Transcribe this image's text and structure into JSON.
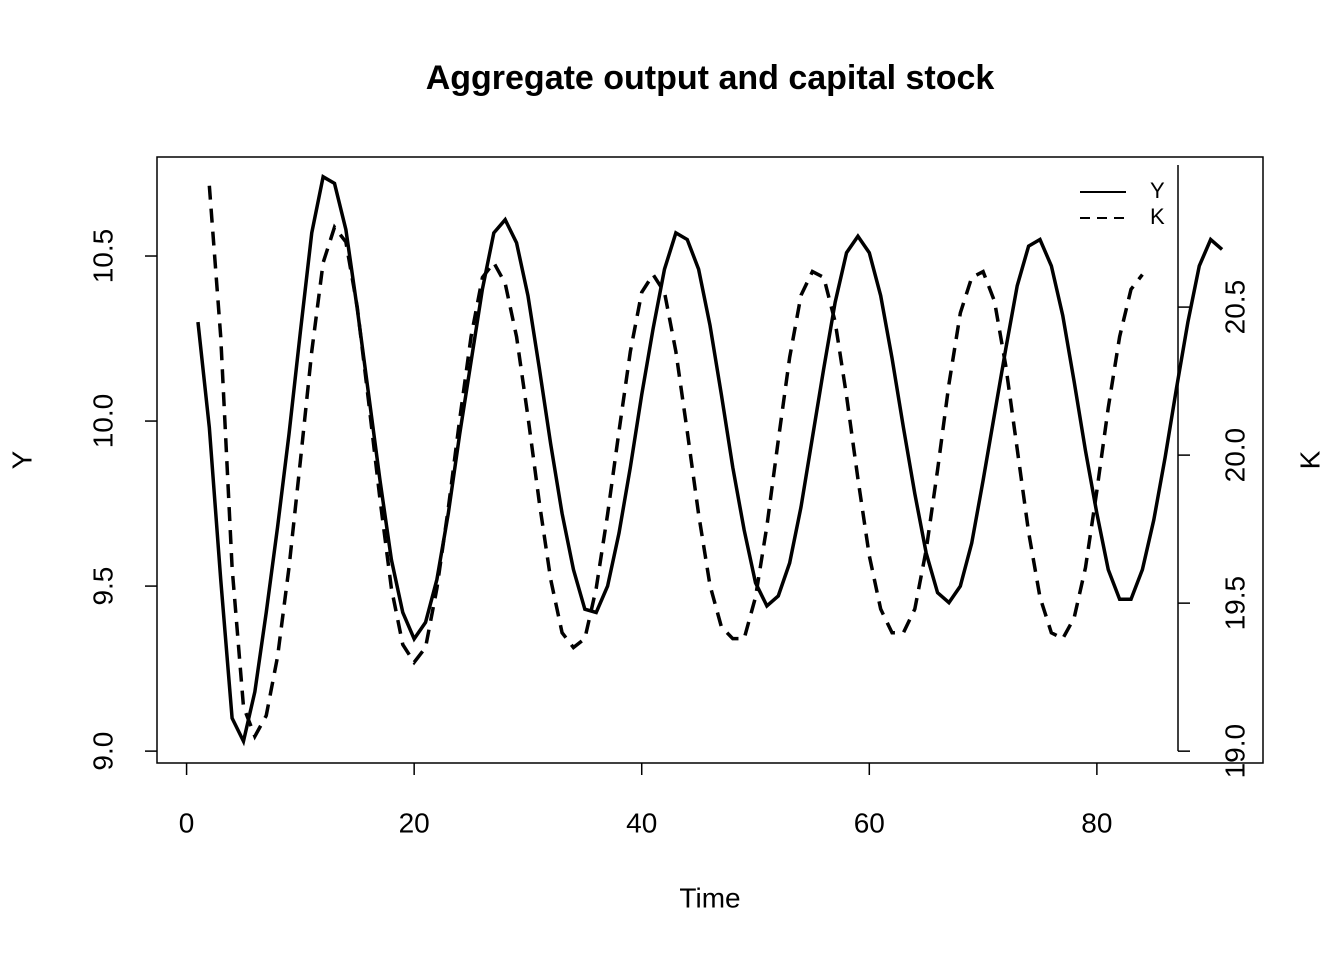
{
  "chart_data": {
    "type": "line",
    "title": "Aggregate output and capital stock",
    "x_label": "Time",
    "y_label": "Y",
    "y2_label": "K",
    "x": [
      1,
      2,
      3,
      4,
      5,
      6,
      7,
      8,
      9,
      10,
      11,
      12,
      13,
      14,
      15,
      16,
      17,
      18,
      19,
      20,
      21,
      22,
      23,
      24,
      25,
      26,
      27,
      28,
      29,
      30,
      31,
      32,
      33,
      34,
      35,
      36,
      37,
      38,
      39,
      40,
      41,
      42,
      43,
      44,
      45,
      46,
      47,
      48,
      49,
      50,
      51,
      52,
      53,
      54,
      55,
      56,
      57,
      58,
      59,
      60,
      61,
      62,
      63,
      64,
      65,
      66,
      67,
      68,
      69,
      70,
      71,
      72,
      73,
      74,
      75,
      76,
      77,
      78,
      79,
      80,
      81,
      82,
      83,
      84,
      85,
      86,
      87,
      88,
      89,
      90,
      91
    ],
    "series": [
      {
        "name": "Y",
        "color": "#000000",
        "dash": "solid",
        "values": [
          10.3,
          9.98,
          9.52,
          9.1,
          9.03,
          9.18,
          9.42,
          9.68,
          9.96,
          10.27,
          10.57,
          10.74,
          10.72,
          10.58,
          10.34,
          10.08,
          9.82,
          9.58,
          9.42,
          9.34,
          9.39,
          9.52,
          9.72,
          9.96,
          10.18,
          10.4,
          10.57,
          10.61,
          10.54,
          10.38,
          10.16,
          9.93,
          9.72,
          9.55,
          9.43,
          9.42,
          9.5,
          9.66,
          9.86,
          10.08,
          10.28,
          10.46,
          10.57,
          10.55,
          10.46,
          10.29,
          10.08,
          9.86,
          9.67,
          9.51,
          9.44,
          9.47,
          9.57,
          9.74,
          9.95,
          10.16,
          10.36,
          10.51,
          10.56,
          10.51,
          10.38,
          10.19,
          9.98,
          9.78,
          9.6,
          9.48,
          9.45,
          9.5,
          9.63,
          9.82,
          10.02,
          10.22,
          10.41,
          10.53,
          10.55,
          10.47,
          10.32,
          10.12,
          9.91,
          9.72,
          9.55,
          9.46,
          9.46,
          9.55,
          9.7,
          9.89,
          10.1,
          10.3,
          10.47,
          10.55,
          10.52
        ]
      },
      {
        "name": "K",
        "color": "#000000",
        "dash": "dashed",
        "axis": "y2",
        "values": [
          null,
          20.91,
          20.4,
          19.62,
          19.15,
          19.05,
          19.12,
          19.32,
          19.62,
          19.98,
          20.35,
          20.65,
          20.77,
          20.72,
          20.5,
          20.18,
          19.85,
          19.55,
          19.36,
          19.3,
          19.35,
          19.55,
          19.82,
          20.12,
          20.4,
          20.6,
          20.65,
          20.58,
          20.4,
          20.13,
          19.84,
          19.58,
          19.4,
          19.35,
          19.38,
          19.55,
          19.8,
          20.08,
          20.35,
          20.55,
          20.61,
          20.55,
          20.35,
          20.08,
          19.8,
          19.56,
          19.42,
          19.38,
          19.38,
          19.52,
          19.76,
          20.05,
          20.33,
          20.54,
          20.62,
          20.6,
          20.45,
          20.2,
          19.92,
          19.66,
          19.48,
          19.4,
          19.4,
          19.48,
          19.68,
          19.95,
          20.24,
          20.48,
          20.6,
          20.62,
          20.52,
          20.3,
          20.02,
          19.74,
          19.52,
          19.4,
          19.38,
          19.45,
          19.62,
          19.88,
          20.16,
          20.4,
          20.56,
          20.61,
          null,
          null,
          null,
          null,
          null,
          null,
          null
        ]
      }
    ],
    "xlim": [
      -2.6,
      94.6
    ],
    "xticks": [
      0,
      20,
      40,
      60,
      80
    ],
    "ylim": [
      8.964,
      10.8
    ],
    "yticks": [
      {
        "value": 9,
        "label": "9.0"
      },
      9.5,
      {
        "value": 10,
        "label": "10.0"
      },
      10.5
    ],
    "y2lim": [
      18.96,
      21.007
    ],
    "y2ticks": [
      {
        "value": 19,
        "label": "19.0"
      },
      19.5,
      {
        "value": 20,
        "label": "20.0"
      },
      20.5
    ],
    "legend": "topright"
  }
}
